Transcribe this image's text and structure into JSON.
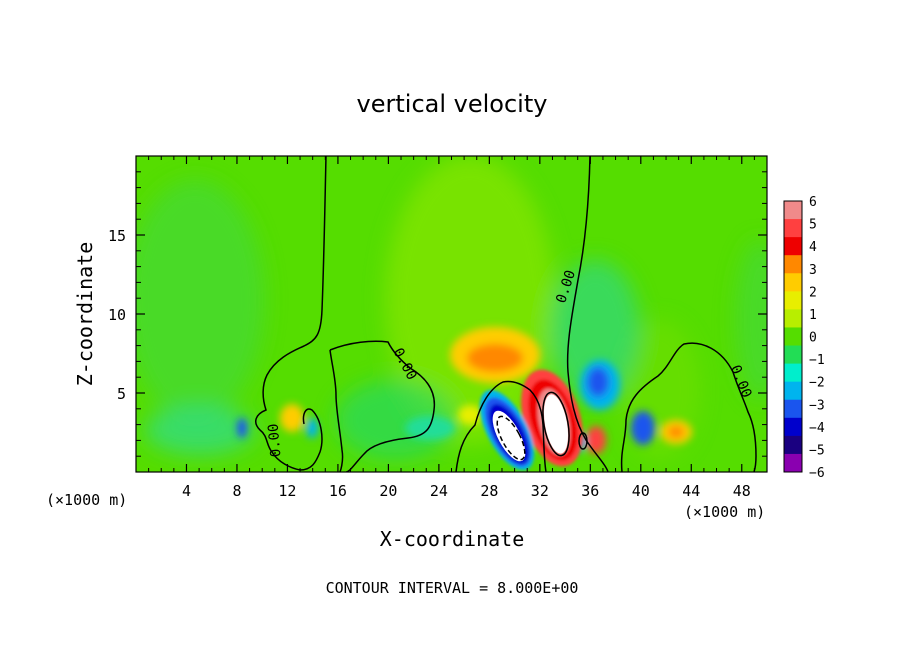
{
  "chart_data": {
    "type": "heatmap",
    "title": "vertical velocity",
    "xlabel": "X-coordinate",
    "ylabel": "Z-coordinate",
    "x_unit_left": "(×1000 m)",
    "x_unit_right": "(×1000 m)",
    "xlim": [
      0,
      50
    ],
    "ylim": [
      0,
      20
    ],
    "xticks": [
      4,
      8,
      12,
      16,
      20,
      24,
      28,
      32,
      36,
      40,
      44,
      48
    ],
    "yticks": [
      5,
      10,
      15
    ],
    "footer": "CONTOUR INTERVAL = 8.000E+00",
    "contour_label": "0.00",
    "colorbar": {
      "levels": [
        6,
        5,
        4,
        3,
        2,
        1,
        0,
        -1,
        -2,
        -3,
        -4,
        -5,
        -6
      ],
      "colors": [
        "#f08a8a",
        "#ff4040",
        "#ee0000",
        "#ff8800",
        "#ffcc00",
        "#e8ee00",
        "#b8ee00",
        "#55dd00",
        "#22dd55",
        "#00eecc",
        "#00b4ee",
        "#1a55ee",
        "#0000cc",
        "#1a0080",
        "#8a00b0"
      ]
    },
    "features": [
      {
        "kind": "updraft",
        "x": 32.8,
        "z": 3.2,
        "value": 6
      },
      {
        "kind": "downdraft",
        "x": 29.5,
        "z": 3.0,
        "value": -6
      },
      {
        "kind": "updraft",
        "x": 28.5,
        "z": 7.2,
        "value": 3
      },
      {
        "kind": "downdraft",
        "x": 36.4,
        "z": 5.6,
        "value": -3
      },
      {
        "kind": "downdraft",
        "x": 40.0,
        "z": 3.0,
        "value": -3
      },
      {
        "kind": "updraft",
        "x": 42.8,
        "z": 2.6,
        "value": 3
      },
      {
        "kind": "updraft",
        "x": 36.8,
        "z": 2.0,
        "value": 3
      },
      {
        "kind": "downdraft",
        "x": 35.0,
        "z": 1.8,
        "value": -2
      },
      {
        "kind": "updraft",
        "x": 12.3,
        "z": 3.4,
        "value": 2
      },
      {
        "kind": "downdraft",
        "x": 8.5,
        "z": 2.8,
        "value": -2
      }
    ]
  }
}
